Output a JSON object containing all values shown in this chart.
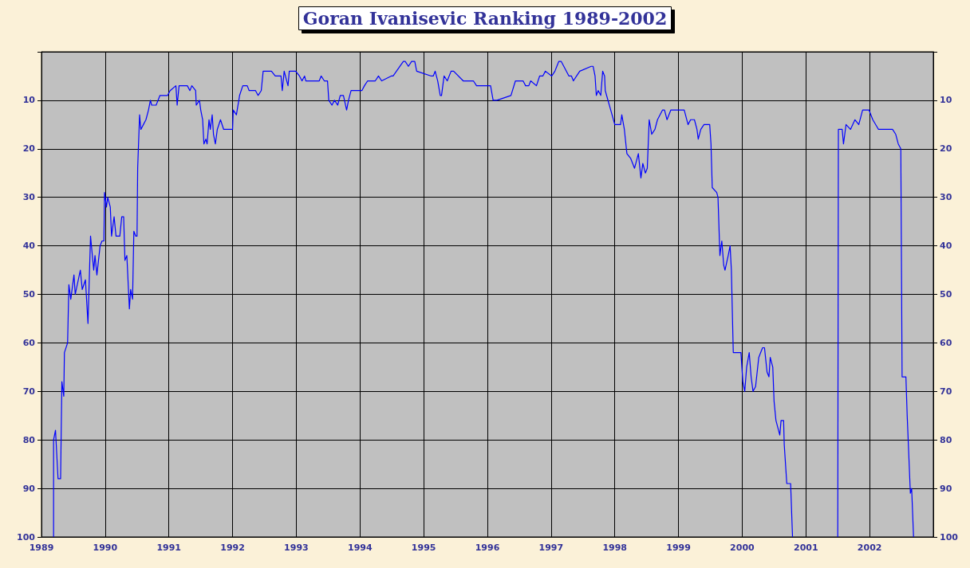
{
  "chart_data": {
    "type": "line",
    "title": "Goran Ivanisevic Ranking 1989-2002",
    "x": [
      1989.19,
      1989.19,
      1989.22,
      1989.26,
      1989.3,
      1989.32,
      1989.35,
      1989.36,
      1989.41,
      1989.43,
      1989.46,
      1989.51,
      1989.53,
      1989.61,
      1989.64,
      1989.69,
      1989.73,
      1989.77,
      1989.82,
      1989.84,
      1989.87,
      1989.92,
      1989.95,
      1989.98,
      1989.99,
      1990.02,
      1990.04,
      1990.08,
      1990.1,
      1990.14,
      1990.17,
      1990.23,
      1990.26,
      1990.29,
      1990.31,
      1990.34,
      1990.38,
      1990.4,
      1990.43,
      1990.45,
      1990.48,
      1990.5,
      1990.51,
      1990.54,
      1990.56,
      1990.6,
      1990.64,
      1990.68,
      1990.71,
      1990.73,
      1990.8,
      1990.86,
      1990.98,
      1991.02,
      1991.11,
      1991.13,
      1991.16,
      1991.29,
      1991.33,
      1991.36,
      1991.42,
      1991.43,
      1991.48,
      1991.5,
      1991.53,
      1991.55,
      1991.58,
      1991.6,
      1991.63,
      1991.65,
      1991.68,
      1991.7,
      1991.73,
      1991.76,
      1991.81,
      1991.86,
      1992.0,
      1992.01,
      1992.06,
      1992.11,
      1992.16,
      1992.23,
      1992.26,
      1992.36,
      1992.4,
      1992.45,
      1992.48,
      1992.61,
      1992.67,
      1992.76,
      1992.78,
      1992.81,
      1992.87,
      1992.89,
      1992.99,
      1993.05,
      1993.09,
      1993.13,
      1993.15,
      1993.18,
      1993.36,
      1993.39,
      1993.44,
      1993.49,
      1993.51,
      1993.56,
      1993.6,
      1993.65,
      1993.69,
      1993.74,
      1993.79,
      1993.82,
      1993.86,
      1993.99,
      1994.03,
      1994.07,
      1994.12,
      1994.24,
      1994.29,
      1994.34,
      1994.49,
      1994.52,
      1994.68,
      1994.71,
      1994.76,
      1994.81,
      1994.86,
      1994.89,
      1995.12,
      1995.15,
      1995.18,
      1995.22,
      1995.26,
      1995.28,
      1995.32,
      1995.37,
      1995.43,
      1995.47,
      1995.62,
      1995.68,
      1995.74,
      1995.78,
      1995.83,
      1996.05,
      1996.09,
      1996.12,
      1996.15,
      1996.37,
      1996.44,
      1996.56,
      1996.6,
      1996.65,
      1996.68,
      1996.77,
      1996.82,
      1996.87,
      1996.91,
      1997.01,
      1997.06,
      1997.09,
      1997.12,
      1997.16,
      1997.28,
      1997.32,
      1997.35,
      1997.4,
      1997.45,
      1997.63,
      1997.66,
      1997.69,
      1997.71,
      1997.74,
      1997.78,
      1997.81,
      1997.84,
      1997.85,
      1998.0,
      1998.05,
      1998.09,
      1998.11,
      1998.15,
      1998.19,
      1998.25,
      1998.31,
      1998.33,
      1998.37,
      1998.41,
      1998.44,
      1998.48,
      1998.51,
      1998.54,
      1998.58,
      1998.63,
      1998.67,
      1998.75,
      1998.78,
      1998.82,
      1998.88,
      1999.0,
      1999.07,
      1999.09,
      1999.15,
      1999.19,
      1999.25,
      1999.29,
      1999.31,
      1999.35,
      1999.4,
      1999.49,
      1999.51,
      1999.53,
      1999.6,
      1999.62,
      1999.65,
      1999.68,
      1999.71,
      1999.73,
      1999.78,
      1999.81,
      1999.83,
      1999.86,
      1999.98,
      2000.01,
      2000.04,
      2000.07,
      2000.11,
      2000.14,
      2000.17,
      2000.21,
      2000.26,
      2000.29,
      2000.32,
      2000.35,
      2000.39,
      2000.42,
      2000.44,
      2000.48,
      2000.5,
      2000.53,
      2000.59,
      2000.61,
      2000.65,
      2000.66,
      2000.7,
      2000.76,
      2000.79,
      2001.1,
      2001.5,
      2001.51,
      2001.57,
      2001.59,
      2001.63,
      2001.7,
      2001.77,
      2001.83,
      2001.89,
      2001.99,
      2002.05,
      2002.14,
      2002.26,
      2002.32,
      2002.36,
      2002.41,
      2002.45,
      2002.49,
      2002.51,
      2002.55,
      2002.57,
      2002.59,
      2002.64,
      2002.66,
      2002.69
    ],
    "values": [
      100,
      80,
      78,
      88,
      88,
      68,
      71,
      62,
      60,
      48,
      51,
      46,
      50,
      45,
      49,
      47,
      56,
      38,
      45,
      42,
      46,
      40,
      39,
      39,
      29,
      32,
      30,
      32,
      38,
      34,
      38,
      38,
      34,
      34,
      43,
      42,
      53,
      49,
      51,
      37,
      38,
      38,
      24,
      13,
      16,
      15,
      14,
      12,
      10,
      11,
      11,
      9,
      9,
      8,
      7,
      11,
      7,
      7,
      8,
      7,
      8,
      11,
      10,
      12,
      14,
      19,
      18,
      19,
      14,
      16,
      13,
      17,
      19,
      16,
      14,
      16,
      16,
      12,
      13,
      9,
      7,
      7,
      8,
      8,
      9,
      8,
      4,
      4,
      5,
      5,
      8,
      4,
      7,
      4,
      4,
      5,
      6,
      5,
      6,
      6,
      6,
      5,
      6,
      6,
      10,
      11,
      10,
      11,
      9,
      9,
      12,
      10,
      8,
      8,
      8,
      7,
      6,
      6,
      5,
      6,
      5,
      5,
      2,
      2,
      3,
      2,
      2,
      4,
      5,
      5,
      4,
      6,
      9,
      9,
      5,
      6,
      4,
      4,
      6,
      6,
      6,
      6,
      7,
      7,
      10,
      10,
      10,
      9,
      6,
      6,
      7,
      7,
      6,
      7,
      5,
      5,
      4,
      5,
      4,
      3,
      2,
      2,
      5,
      5,
      6,
      5,
      4,
      3,
      3,
      5,
      9,
      8,
      9,
      4,
      5,
      8,
      15,
      15,
      15,
      13,
      16,
      21,
      22,
      24,
      23,
      21,
      26,
      23,
      25,
      24,
      14,
      17,
      16,
      14,
      12,
      12,
      14,
      12,
      12,
      12,
      12,
      15,
      14,
      14,
      16,
      18,
      16,
      15,
      15,
      19,
      28,
      29,
      30,
      42,
      39,
      44,
      45,
      42,
      40,
      45,
      62,
      62,
      68,
      70,
      65,
      62,
      67,
      70,
      69,
      63,
      62,
      61,
      61,
      66,
      67,
      63,
      65,
      72,
      76,
      79,
      76,
      76,
      81,
      89,
      89,
      100,
      null,
      100,
      16,
      16,
      19,
      15,
      16,
      14,
      15,
      12,
      12,
      14,
      16,
      16,
      16,
      16,
      17,
      19,
      20,
      67,
      67,
      67,
      75,
      91,
      90,
      100
    ],
    "color": "#0000ff",
    "marker": "none",
    "line_style": "solid",
    "xlim": [
      1989,
      2003
    ],
    "xticks": [
      1989,
      1990,
      1991,
      1992,
      1993,
      1994,
      1995,
      1996,
      1997,
      1998,
      1999,
      2000,
      2001,
      2002
    ],
    "ylim": [
      100,
      0
    ],
    "yticks": [
      {
        "value": 0,
        "label": null
      },
      10,
      20,
      30,
      40,
      50,
      60,
      70,
      80,
      90,
      100
    ],
    "y2lim": [
      100,
      0
    ],
    "y2ticks": [
      {
        "value": 0,
        "label": null
      },
      10,
      20,
      30,
      40,
      50,
      60,
      70,
      80,
      90,
      100
    ],
    "grid": true
  }
}
